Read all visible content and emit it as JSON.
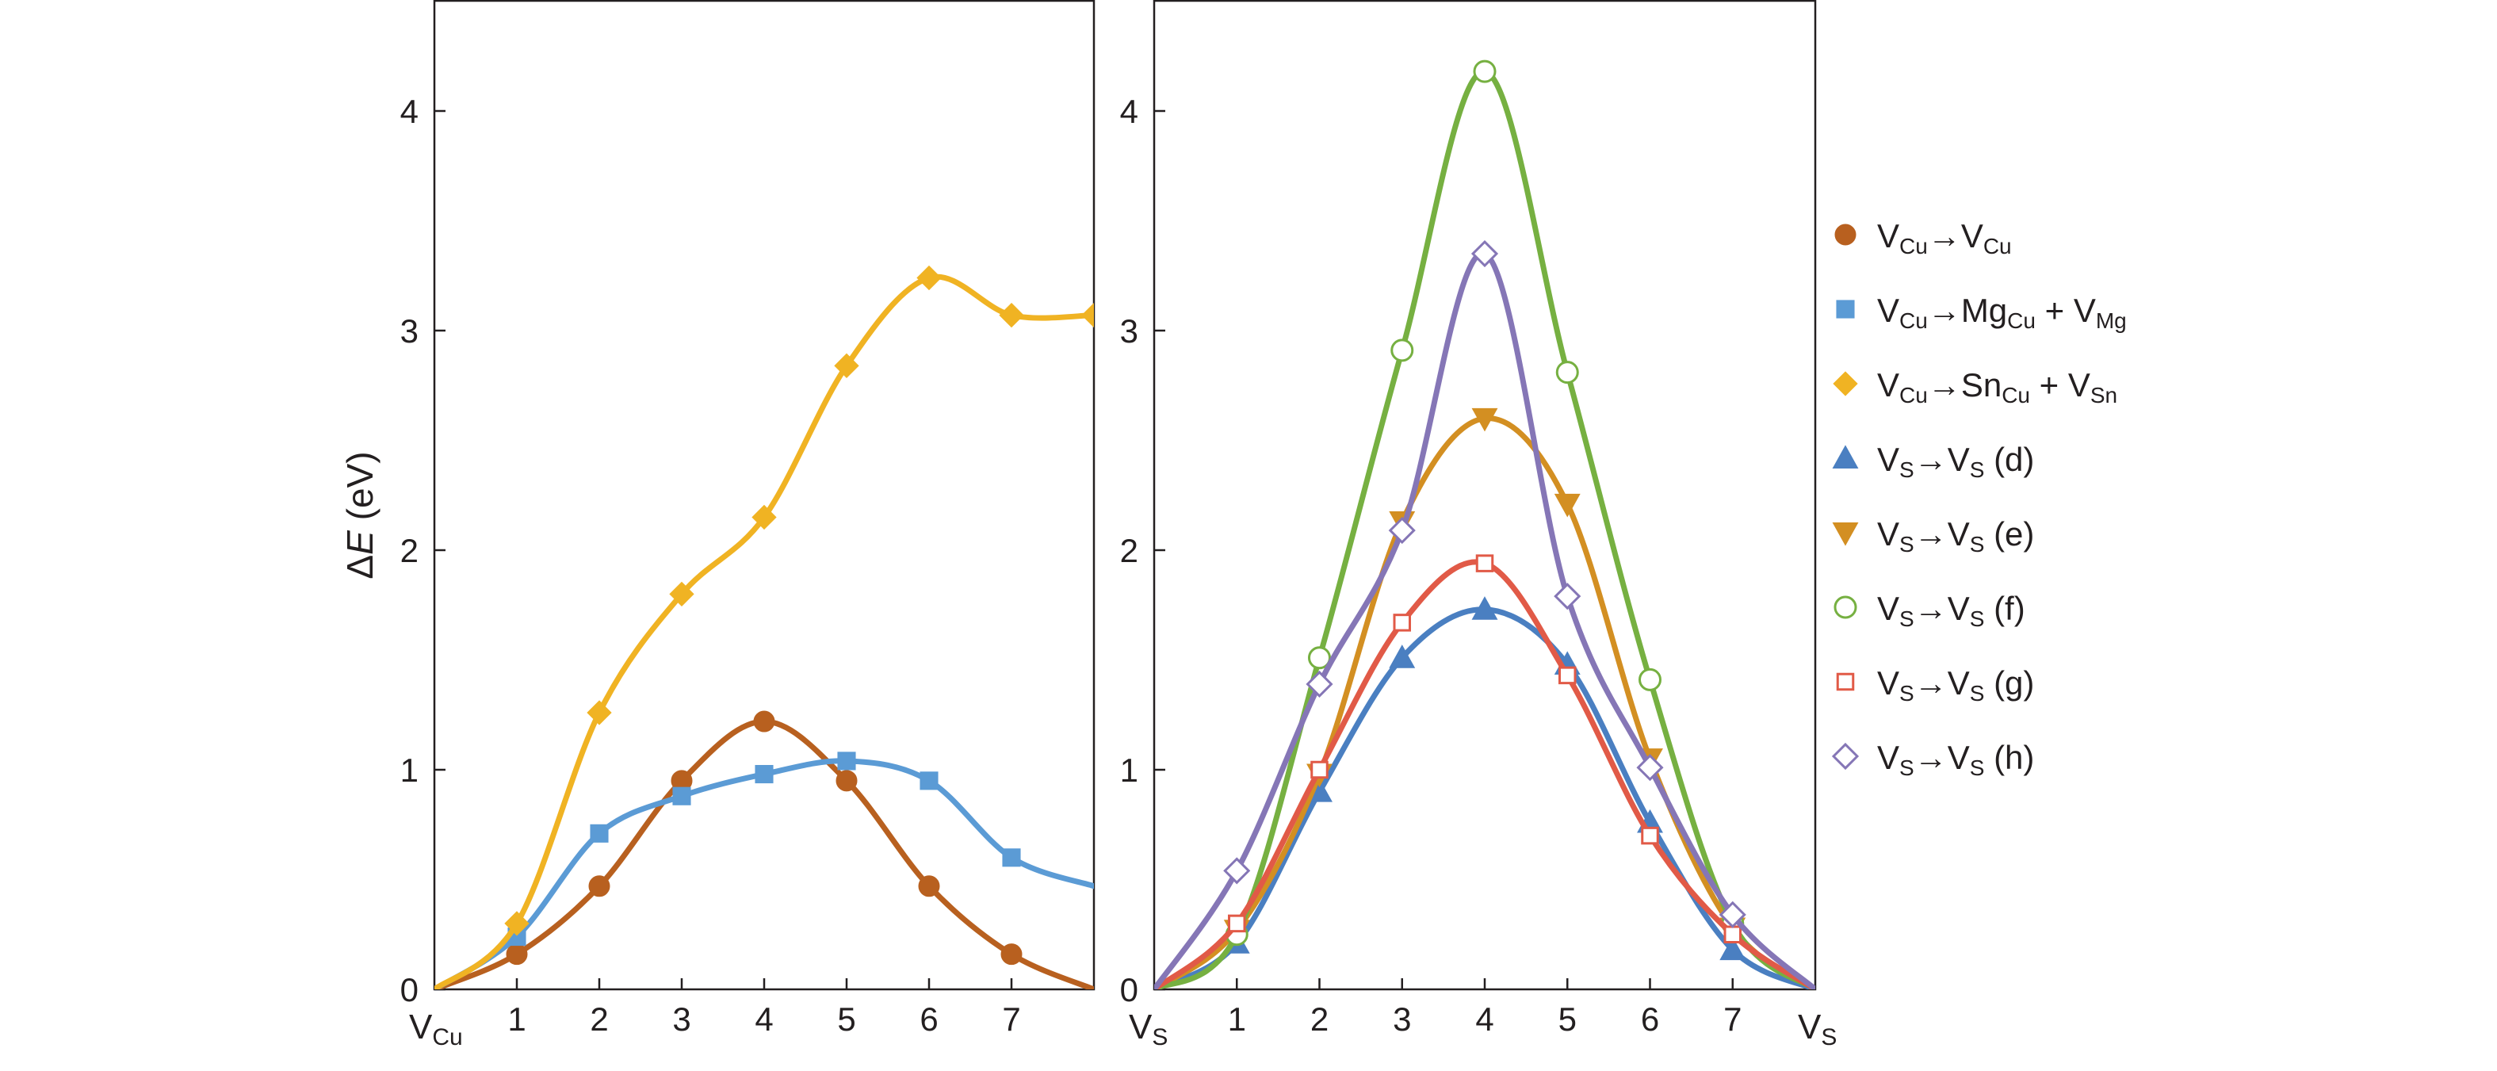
{
  "chart_data": [
    {
      "type": "line",
      "panel": "left",
      "title": "",
      "ylabel": "ΔE (eV)",
      "ylabel_parts": {
        "symbol": "Δ",
        "var": "E",
        "unit": " (eV)"
      },
      "xlabel": "",
      "x_start_label": {
        "base": "V",
        "sub": "Cu"
      },
      "x_end_label": null,
      "xlim": [
        0,
        8
      ],
      "ylim": [
        0,
        4.5
      ],
      "xticks": [
        1,
        2,
        3,
        4,
        5,
        6,
        7
      ],
      "yticks": [
        0,
        1,
        2,
        3,
        4
      ],
      "series": [
        {
          "key": "vcu-vcu",
          "name": "VCu→VCu",
          "color": "#b8601f",
          "marker": "circle",
          "filled": true,
          "x": [
            1,
            2,
            3,
            4,
            5,
            6,
            7
          ],
          "values": [
            0.16,
            0.47,
            0.95,
            1.22,
            0.95,
            0.47,
            0.16
          ],
          "curve": [
            [
              0,
              0
            ],
            [
              1,
              0.16
            ],
            [
              2,
              0.47
            ],
            [
              3,
              0.95
            ],
            [
              4,
              1.22
            ],
            [
              5,
              0.95
            ],
            [
              6,
              0.47
            ],
            [
              7,
              0.16
            ],
            [
              8,
              0
            ]
          ]
        },
        {
          "key": "vcu-mgcu",
          "name": "VCu→MgCu + VMg",
          "color": "#5b9bd5",
          "marker": "square",
          "filled": true,
          "x": [
            1,
            2,
            3,
            4,
            5,
            6,
            7
          ],
          "values": [
            0.24,
            0.71,
            0.88,
            0.98,
            1.04,
            0.95,
            0.6
          ],
          "curve": [
            [
              0,
              0
            ],
            [
              1,
              0.24
            ],
            [
              2,
              0.71
            ],
            [
              3,
              0.88
            ],
            [
              4,
              0.98
            ],
            [
              5,
              1.04
            ],
            [
              6,
              0.95
            ],
            [
              7,
              0.6
            ],
            [
              8,
              0.47
            ]
          ]
        },
        {
          "key": "vcu-sncu",
          "name": "VCu→SnCu + VSn",
          "color": "#f0b323",
          "marker": "diamond",
          "filled": true,
          "x": [
            1,
            2,
            3,
            4,
            5,
            6,
            7,
            8
          ],
          "values": [
            0.3,
            1.26,
            1.8,
            2.15,
            2.84,
            3.24,
            3.07,
            3.07
          ],
          "curve": [
            [
              0,
              0
            ],
            [
              1,
              0.3
            ],
            [
              2,
              1.26
            ],
            [
              3,
              1.8
            ],
            [
              4,
              2.15
            ],
            [
              5,
              2.84
            ],
            [
              6,
              3.24
            ],
            [
              7,
              3.07
            ],
            [
              8,
              3.07
            ]
          ]
        }
      ]
    },
    {
      "type": "line",
      "panel": "right",
      "title": "",
      "ylabel": "",
      "xlabel": "",
      "x_start_label": {
        "base": "V",
        "sub": "S"
      },
      "x_end_label": {
        "base": "V",
        "sub": "S"
      },
      "xlim": [
        0,
        8
      ],
      "ylim": [
        0,
        4.5
      ],
      "xticks": [
        1,
        2,
        3,
        4,
        5,
        6,
        7
      ],
      "yticks": [
        0,
        1,
        2,
        3,
        4
      ],
      "series": [
        {
          "key": "vs-d",
          "name": "VS→VS (d)",
          "color": "#4a7fc1",
          "marker": "triangle-up",
          "filled": true,
          "x": [
            1,
            2,
            3,
            4,
            5,
            6,
            7
          ],
          "values": [
            0.21,
            0.9,
            1.51,
            1.73,
            1.48,
            0.76,
            0.18
          ],
          "curve": [
            [
              0,
              0
            ],
            [
              1,
              0.21
            ],
            [
              2,
              0.9
            ],
            [
              3,
              1.51
            ],
            [
              4,
              1.73
            ],
            [
              5,
              1.48
            ],
            [
              6,
              0.76
            ],
            [
              7,
              0.18
            ],
            [
              8,
              0
            ]
          ]
        },
        {
          "key": "vs-e",
          "name": "VS→VS (e)",
          "color": "#d38f22",
          "marker": "triangle-down",
          "filled": true,
          "x": [
            1,
            2,
            3,
            4,
            5,
            6,
            7
          ],
          "values": [
            0.27,
            0.98,
            2.13,
            2.6,
            2.21,
            1.05,
            0.28
          ],
          "curve": [
            [
              0,
              0
            ],
            [
              1,
              0.27
            ],
            [
              2,
              0.98
            ],
            [
              3,
              2.13
            ],
            [
              4,
              2.6
            ],
            [
              5,
              2.21
            ],
            [
              6,
              1.05
            ],
            [
              7,
              0.28
            ],
            [
              8,
              0
            ]
          ]
        },
        {
          "key": "vs-f",
          "name": "VS→VS (f)",
          "color": "#76b041",
          "marker": "circle",
          "filled": false,
          "x": [
            1,
            2,
            3,
            4,
            5,
            6,
            7
          ],
          "values": [
            0.25,
            1.51,
            2.91,
            4.18,
            2.81,
            1.41,
            0.3
          ],
          "curve": [
            [
              0,
              0
            ],
            [
              1,
              0.25
            ],
            [
              2,
              1.51
            ],
            [
              3,
              2.91
            ],
            [
              4,
              4.18
            ],
            [
              5,
              2.81
            ],
            [
              6,
              1.41
            ],
            [
              7,
              0.3
            ],
            [
              8,
              0
            ]
          ]
        },
        {
          "key": "vs-g",
          "name": "VS→VS (g)",
          "color": "#e15a47",
          "marker": "square",
          "filled": false,
          "x": [
            1,
            2,
            3,
            4,
            5,
            6,
            7
          ],
          "values": [
            0.3,
            1.0,
            1.67,
            1.94,
            1.43,
            0.7,
            0.25
          ],
          "curve": [
            [
              0,
              0
            ],
            [
              1,
              0.3
            ],
            [
              2,
              1.0
            ],
            [
              3,
              1.67
            ],
            [
              4,
              1.94
            ],
            [
              5,
              1.43
            ],
            [
              6,
              0.7
            ],
            [
              7,
              0.25
            ],
            [
              8,
              0
            ]
          ]
        },
        {
          "key": "vs-h",
          "name": "VS→VS (h)",
          "color": "#8576b6",
          "marker": "diamond",
          "filled": false,
          "x": [
            1,
            2,
            3,
            4,
            5,
            6,
            7
          ],
          "values": [
            0.54,
            1.39,
            2.09,
            3.35,
            1.79,
            1.01,
            0.34
          ],
          "curve": [
            [
              0,
              0
            ],
            [
              1,
              0.54
            ],
            [
              2,
              1.39
            ],
            [
              3,
              2.09
            ],
            [
              4,
              3.35
            ],
            [
              5,
              1.79
            ],
            [
              6,
              1.01
            ],
            [
              7,
              0.34
            ],
            [
              8,
              0
            ]
          ]
        }
      ]
    }
  ],
  "legend": [
    {
      "key": "vcu-vcu",
      "parts": [
        [
          "V",
          "Cu"
        ],
        [
          "→",
          ""
        ],
        [
          "V",
          "Cu"
        ]
      ]
    },
    {
      "key": "vcu-mgcu",
      "parts": [
        [
          "V",
          "Cu"
        ],
        [
          "→",
          ""
        ],
        [
          "Mg",
          "Cu"
        ],
        [
          " + V",
          "Mg"
        ]
      ]
    },
    {
      "key": "vcu-sncu",
      "parts": [
        [
          "V",
          "Cu"
        ],
        [
          "→",
          ""
        ],
        [
          "Sn",
          "Cu"
        ],
        [
          " + V",
          "Sn"
        ]
      ]
    },
    {
      "key": "vs-d",
      "parts": [
        [
          "V",
          "S"
        ],
        [
          "→",
          ""
        ],
        [
          "V",
          "S"
        ],
        [
          " (d)",
          ""
        ]
      ]
    },
    {
      "key": "vs-e",
      "parts": [
        [
          "V",
          "S"
        ],
        [
          "→",
          ""
        ],
        [
          "V",
          "S"
        ],
        [
          " (e)",
          ""
        ]
      ]
    },
    {
      "key": "vs-f",
      "parts": [
        [
          "V",
          "S"
        ],
        [
          "→",
          ""
        ],
        [
          "V",
          "S"
        ],
        [
          " (f)",
          ""
        ]
      ]
    },
    {
      "key": "vs-g",
      "parts": [
        [
          "V",
          "S"
        ],
        [
          "→",
          ""
        ],
        [
          "V",
          "S"
        ],
        [
          " (g)",
          ""
        ]
      ]
    },
    {
      "key": "vs-h",
      "parts": [
        [
          "V",
          "S"
        ],
        [
          "→",
          ""
        ],
        [
          "V",
          "S"
        ],
        [
          " (h)",
          ""
        ]
      ]
    }
  ]
}
